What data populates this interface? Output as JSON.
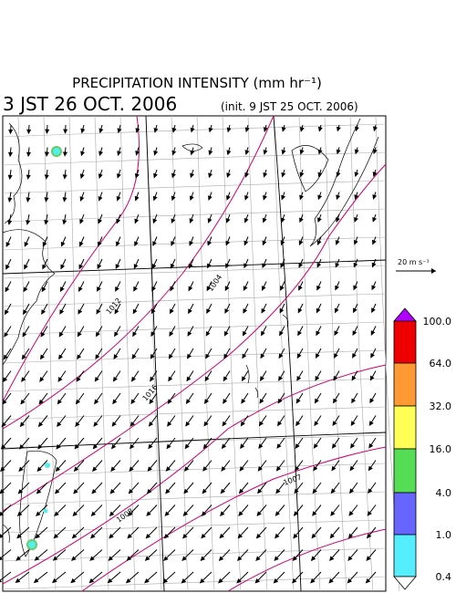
{
  "header": {
    "title": "PRECIPITATION INTENSITY (mm hr⁻¹)",
    "valid_time": "3 JST 26 OCT. 2006",
    "init_time": "(init. 9 JST 25 OCT. 2006)"
  },
  "map": {
    "isobar_labels": [
      "1012",
      "1016",
      "1004",
      "1008",
      "1007"
    ],
    "reference_vector": "20 m s⁻¹"
  },
  "colorbar": {
    "labels": [
      "100.0",
      "64.0",
      "32.0",
      "16.0",
      "4.0",
      "1.0",
      "0.4"
    ]
  }
}
